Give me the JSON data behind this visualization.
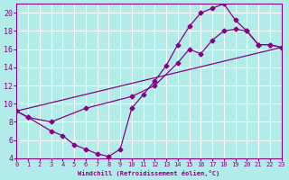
{
  "xlabel": "Windchill (Refroidissement éolien,°C)",
  "bg_color": "#b2ece8",
  "grid_color": "#ffffff",
  "line_color": "#880088",
  "xlim": [
    0,
    23
  ],
  "ylim": [
    4,
    21
  ],
  "xticks": [
    0,
    1,
    2,
    3,
    4,
    5,
    6,
    7,
    8,
    9,
    10,
    11,
    12,
    13,
    14,
    15,
    16,
    17,
    18,
    19,
    20,
    21,
    22,
    23
  ],
  "yticks": [
    4,
    6,
    8,
    10,
    12,
    14,
    16,
    18,
    20
  ],
  "line1_x": [
    0,
    1,
    3,
    4,
    5,
    6,
    7,
    8,
    9,
    10,
    11,
    12,
    13,
    14,
    15,
    16,
    17,
    18,
    19,
    20,
    21,
    22,
    23
  ],
  "line1_y": [
    9.2,
    8.5,
    7.0,
    6.5,
    5.5,
    5.0,
    4.5,
    4.2,
    5.0,
    9.5,
    11.0,
    12.5,
    14.2,
    16.5,
    18.5,
    20.0,
    20.5,
    21.0,
    19.2,
    18.0,
    16.5,
    16.5,
    16.2
  ],
  "line2_x": [
    0,
    23
  ],
  "line2_y": [
    9.2,
    16.2
  ],
  "line3_x": [
    0,
    1,
    3,
    6,
    10,
    12,
    14,
    15,
    16,
    17,
    18,
    19,
    20,
    21,
    22,
    23
  ],
  "line3_y": [
    9.2,
    8.5,
    8.0,
    9.5,
    10.8,
    12.0,
    14.5,
    16.0,
    15.5,
    17.0,
    18.0,
    18.2,
    18.0,
    16.5,
    16.5,
    16.2
  ]
}
